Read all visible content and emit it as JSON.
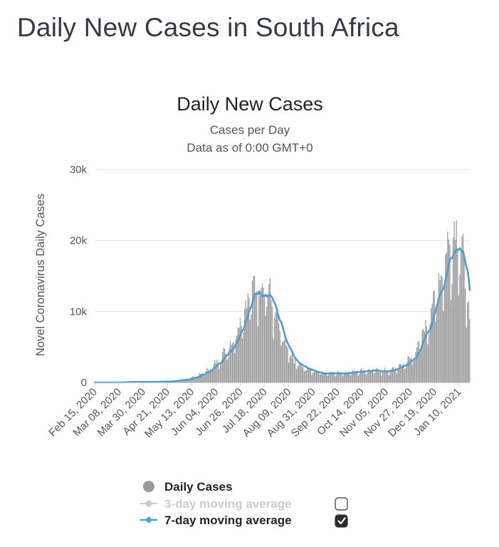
{
  "page": {
    "title": "Daily New Cases in South Africa"
  },
  "chart_data": {
    "type": "bar",
    "title": "Daily New Cases",
    "subtitle": "Cases per Day",
    "subtitle2": "Data as of 0:00 GMT+0",
    "ylabel": "Novel Coronavirus Daily Cases",
    "xlabel": "",
    "ylim": [
      0,
      30000
    ],
    "y_ticks": [
      0,
      10000,
      20000,
      30000
    ],
    "y_tick_labels": [
      "0",
      "10k",
      "20k",
      "30k"
    ],
    "x_range_days": [
      0,
      340
    ],
    "x_ticks": [
      {
        "day": 0,
        "label": "Feb 15, 2020"
      },
      {
        "day": 22,
        "label": "Mar 08, 2020"
      },
      {
        "day": 44,
        "label": "Mar 30, 2020"
      },
      {
        "day": 66,
        "label": "Apr 21, 2020"
      },
      {
        "day": 88,
        "label": "May 13, 2020"
      },
      {
        "day": 110,
        "label": "Jun 04, 2020"
      },
      {
        "day": 132,
        "label": "Jun 26, 2020"
      },
      {
        "day": 154,
        "label": "Jul 18, 2020"
      },
      {
        "day": 176,
        "label": "Aug 09, 2020"
      },
      {
        "day": 198,
        "label": "Aug 31, 2020"
      },
      {
        "day": 220,
        "label": "Sep 22, 2020"
      },
      {
        "day": 242,
        "label": "Oct 14, 2020"
      },
      {
        "day": 264,
        "label": "Nov 05, 2020"
      },
      {
        "day": 286,
        "label": "Nov 27, 2020"
      },
      {
        "day": 308,
        "label": "Dec 19, 2020"
      },
      {
        "day": 330,
        "label": "Jan 10, 2021"
      }
    ],
    "daily_keyframes": [
      [
        0,
        0
      ],
      [
        20,
        0
      ],
      [
        35,
        80
      ],
      [
        45,
        60
      ],
      [
        55,
        100
      ],
      [
        65,
        120
      ],
      [
        75,
        250
      ],
      [
        85,
        500
      ],
      [
        95,
        1000
      ],
      [
        100,
        1300
      ],
      [
        105,
        2000
      ],
      [
        110,
        2600
      ],
      [
        115,
        3500
      ],
      [
        120,
        4500
      ],
      [
        125,
        5500
      ],
      [
        130,
        7500
      ],
      [
        135,
        9500
      ],
      [
        140,
        11500
      ],
      [
        145,
        12500
      ],
      [
        150,
        13200
      ],
      [
        153,
        13500
      ],
      [
        156,
        12800
      ],
      [
        160,
        11000
      ],
      [
        165,
        8500
      ],
      [
        170,
        6000
      ],
      [
        175,
        4200
      ],
      [
        180,
        3000
      ],
      [
        185,
        2400
      ],
      [
        190,
        2000
      ],
      [
        200,
        1500
      ],
      [
        210,
        1250
      ],
      [
        220,
        1300
      ],
      [
        230,
        1400
      ],
      [
        240,
        1600
      ],
      [
        250,
        1650
      ],
      [
        260,
        1550
      ],
      [
        270,
        1700
      ],
      [
        278,
        2300
      ],
      [
        285,
        3000
      ],
      [
        290,
        3800
      ],
      [
        295,
        5500
      ],
      [
        300,
        7500
      ],
      [
        305,
        9500
      ],
      [
        310,
        12500
      ],
      [
        315,
        15000
      ],
      [
        320,
        18000
      ],
      [
        325,
        19500
      ],
      [
        328,
        21000
      ],
      [
        330,
        20000
      ],
      [
        335,
        15000
      ],
      [
        338,
        12000
      ],
      [
        340,
        7000
      ]
    ],
    "series": [
      {
        "name": "Daily Cases",
        "color": "#999999",
        "visible": true,
        "enabled": true
      },
      {
        "name": "3-day moving average",
        "color": "#cccccc",
        "visible": false,
        "enabled": false
      },
      {
        "name": "7-day moving average",
        "color": "#4e9ed1",
        "visible": true,
        "enabled": true
      }
    ]
  },
  "colors": {
    "bars": "#9a9a9a",
    "ma7": "#4e9ed1",
    "ma3_disabled": "#c8c8c8",
    "grid": "#e6e6e6",
    "axis_line": "#c8d4e8"
  }
}
